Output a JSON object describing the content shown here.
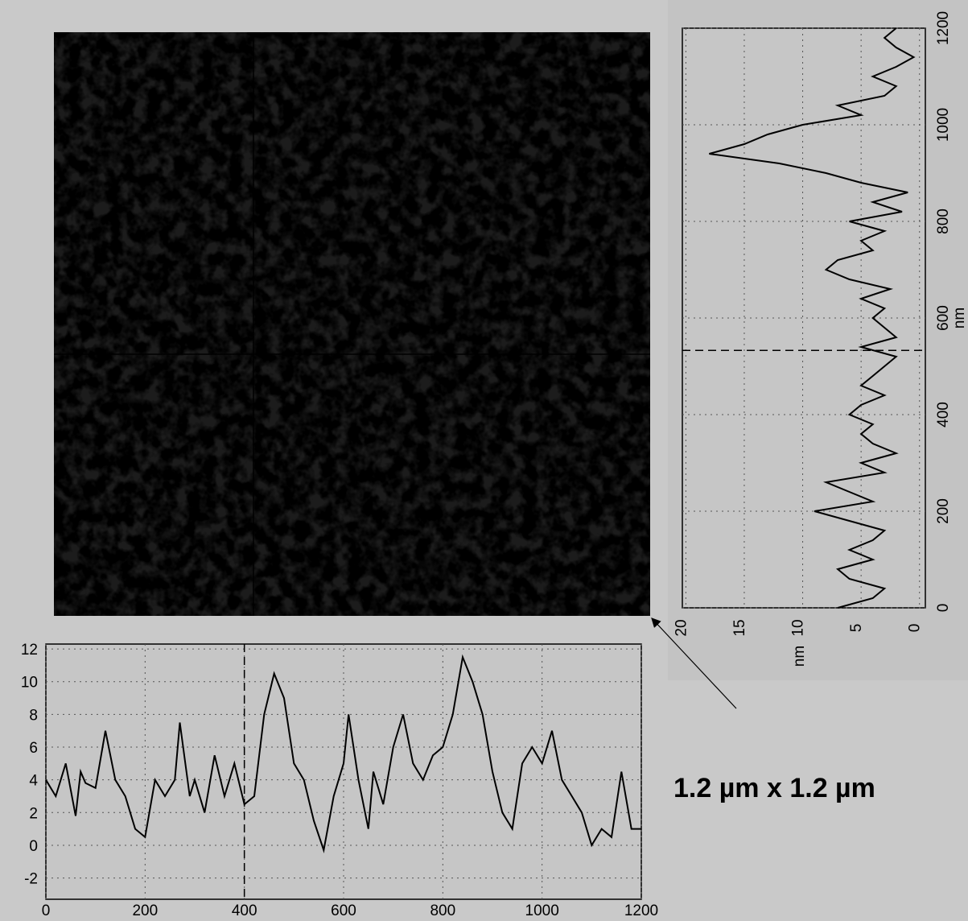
{
  "chart_data": [
    {
      "type": "line",
      "orientation": "horizontal",
      "x_label": "nm",
      "color": "#000000",
      "grid": true,
      "cursor": 400,
      "xlim": [
        0,
        1200
      ],
      "xticks": [
        0,
        200,
        400,
        600,
        800,
        1000,
        1200
      ],
      "ylim": [
        -3.3,
        12.3
      ],
      "yticks": [
        -2,
        0,
        2,
        4,
        6,
        8,
        10,
        12
      ],
      "x": [
        0,
        20,
        40,
        60,
        70,
        80,
        100,
        120,
        140,
        160,
        180,
        200,
        220,
        240,
        260,
        270,
        290,
        300,
        320,
        340,
        360,
        380,
        400,
        420,
        440,
        460,
        480,
        500,
        520,
        540,
        560,
        580,
        600,
        610,
        630,
        650,
        660,
        680,
        700,
        720,
        740,
        760,
        780,
        800,
        820,
        840,
        860,
        880,
        900,
        920,
        940,
        960,
        980,
        1000,
        1020,
        1040,
        1060,
        1080,
        1100,
        1120,
        1140,
        1160,
        1180,
        1200
      ],
      "values": [
        4,
        3,
        5,
        1.8,
        4.5,
        3.8,
        3.5,
        7,
        4,
        3,
        1,
        0.5,
        4,
        3,
        4,
        7.5,
        3,
        4,
        2,
        5.5,
        3,
        5,
        2.5,
        3,
        8,
        10.5,
        9,
        5,
        4,
        1.5,
        -0.3,
        3,
        5,
        8,
        4,
        1,
        4.5,
        2.5,
        6,
        8,
        5,
        4,
        5.5,
        6,
        8,
        11.5,
        10,
        8,
        4.5,
        2,
        1,
        5,
        6,
        5,
        7,
        4,
        3,
        2,
        0,
        1,
        0.5,
        4.5,
        1,
        1
      ]
    },
    {
      "type": "line",
      "orientation": "vertical",
      "x_label": "nm",
      "y_label": "nm",
      "color": "#000000",
      "grid": true,
      "cursor": 533,
      "xlim": [
        0,
        1200
      ],
      "xticks": [
        0,
        200,
        400,
        600,
        800,
        1000,
        1200
      ],
      "ylim": [
        20.3,
        -0.5
      ],
      "yticks": [
        20,
        15,
        10,
        5,
        0
      ],
      "x": [
        0,
        20,
        40,
        60,
        80,
        100,
        120,
        140,
        160,
        180,
        200,
        220,
        240,
        260,
        280,
        300,
        320,
        340,
        360,
        380,
        400,
        420,
        440,
        460,
        480,
        500,
        520,
        540,
        560,
        580,
        600,
        620,
        640,
        660,
        680,
        700,
        720,
        740,
        760,
        780,
        800,
        820,
        840,
        860,
        880,
        900,
        920,
        940,
        960,
        980,
        1000,
        1020,
        1040,
        1060,
        1080,
        1100,
        1120,
        1140,
        1160,
        1180,
        1200
      ],
      "values": [
        7,
        4,
        3,
        6,
        7,
        4,
        6,
        4,
        3,
        6,
        9,
        4,
        6,
        8,
        3,
        5,
        2,
        4,
        5,
        4,
        6,
        5,
        3,
        5,
        4,
        3,
        2,
        5,
        2,
        3,
        4,
        3,
        5,
        2.5,
        6,
        8,
        7,
        4,
        5,
        3,
        6,
        1.5,
        4,
        1,
        5,
        8,
        12,
        18,
        15,
        13,
        10,
        5,
        7,
        3,
        2,
        4,
        2,
        0.5,
        2,
        3,
        2
      ]
    }
  ],
  "annotation": "1.2 µm x 1.2 µm"
}
